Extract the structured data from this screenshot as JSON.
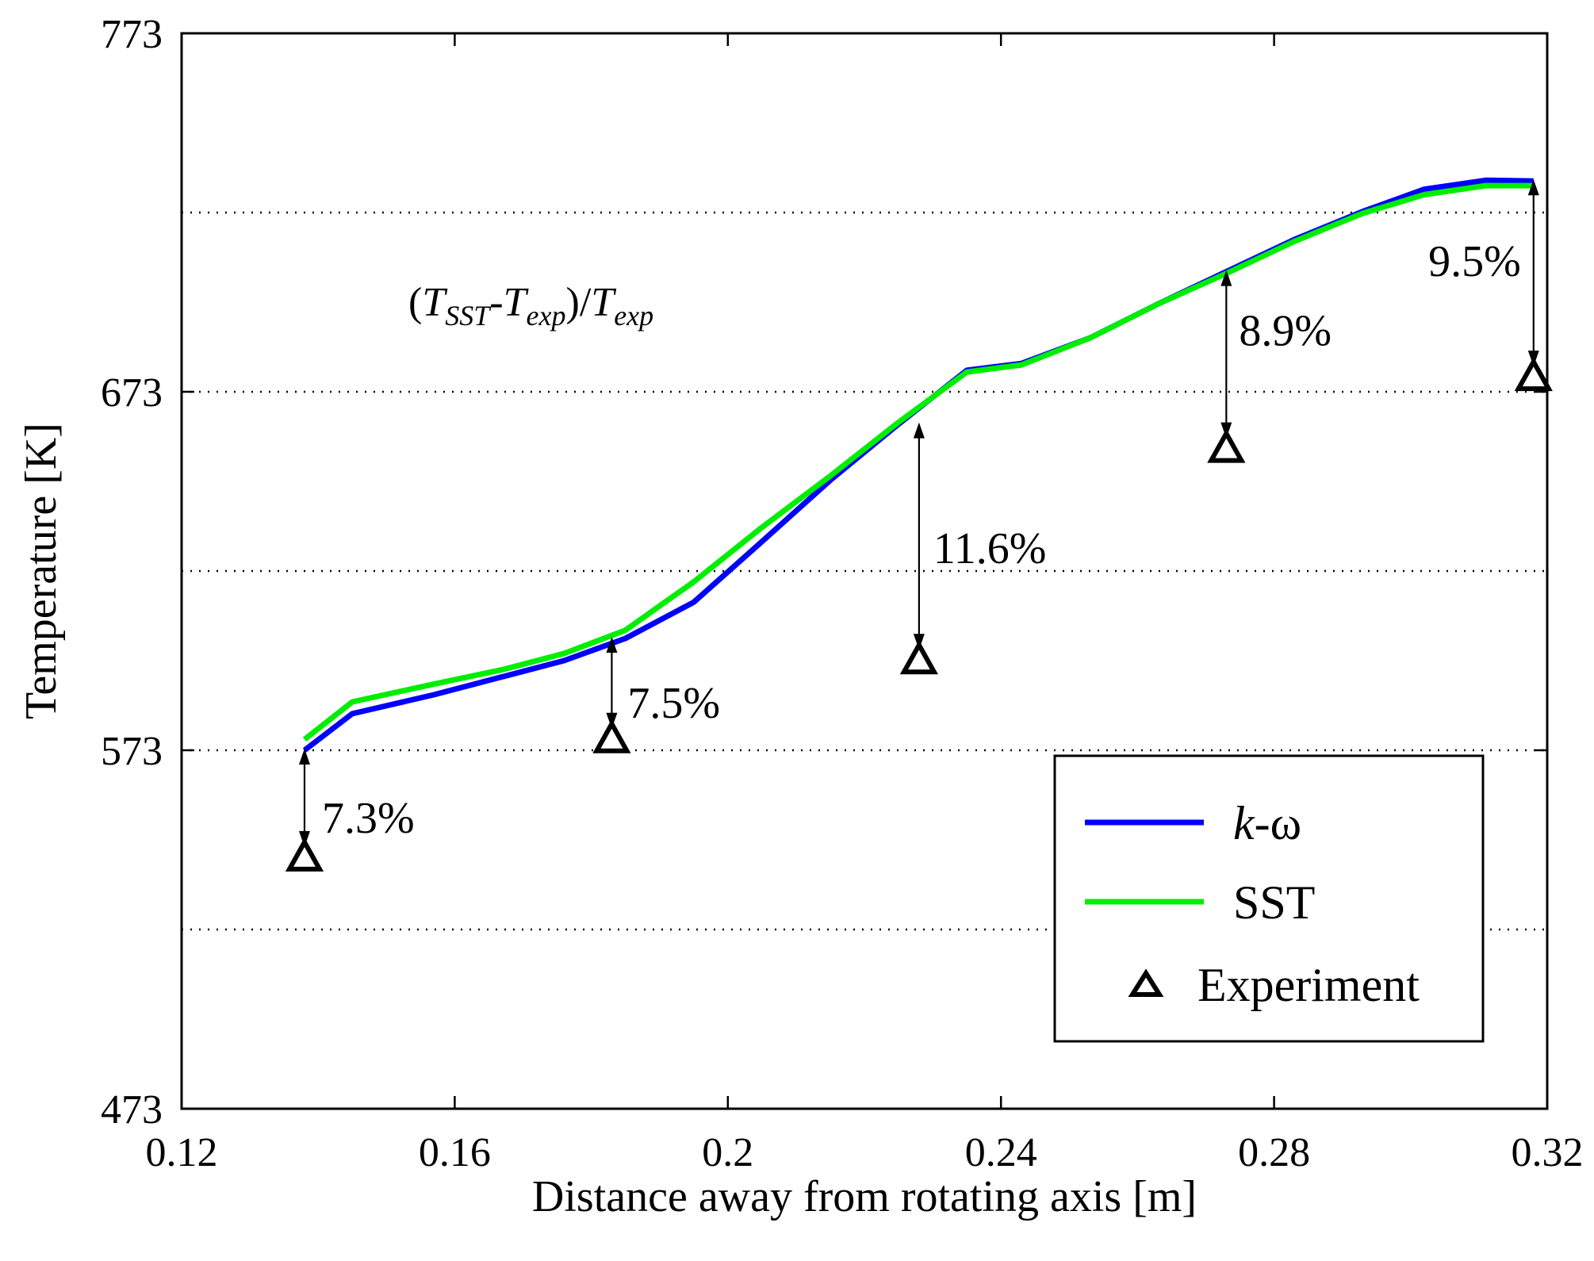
{
  "chart_data": {
    "type": "line",
    "title": "",
    "xlabel": "Distance away from rotating axis [m]",
    "ylabel": "Temperature [K]",
    "xlim": [
      0.12,
      0.32
    ],
    "ylim": [
      473,
      773
    ],
    "x_ticks": [
      0.12,
      0.16,
      0.2,
      0.24,
      0.28,
      0.32
    ],
    "x_tick_labels": [
      "0.12",
      "0.16",
      "0.2",
      "0.24",
      "0.28",
      "0.32"
    ],
    "y_ticks": [
      473,
      573,
      673,
      773
    ],
    "y_tick_labels": [
      "473",
      "573",
      "673",
      "773"
    ],
    "y_gridlines": [
      523,
      573,
      623,
      673,
      723
    ],
    "grid": "horizontal dotted",
    "series": [
      {
        "name": "k-ω",
        "name_prefix": "k",
        "name_suffix": "-ω",
        "style": "line",
        "color": "#0000ff",
        "x": [
          0.138,
          0.145,
          0.157,
          0.167,
          0.176,
          0.185,
          0.195,
          0.205,
          0.215,
          0.225,
          0.235,
          0.243,
          0.253,
          0.263,
          0.273,
          0.283,
          0.293,
          0.302,
          0.311,
          0.318
        ],
        "y": [
          573.0,
          583.2,
          588.5,
          593.5,
          598.0,
          604.2,
          614.3,
          631.2,
          648.3,
          664.0,
          679.0,
          680.9,
          688.0,
          697.5,
          706.5,
          715.5,
          723.3,
          729.5,
          732.0,
          731.8
        ]
      },
      {
        "name": "SST",
        "style": "line",
        "color": "#00ee00",
        "x": [
          0.138,
          0.145,
          0.157,
          0.167,
          0.176,
          0.185,
          0.195,
          0.205,
          0.215,
          0.225,
          0.235,
          0.243,
          0.253,
          0.263,
          0.273,
          0.283,
          0.293,
          0.302,
          0.311,
          0.318
        ],
        "y": [
          576.0,
          586.5,
          591.5,
          595.5,
          600.0,
          606.5,
          620.0,
          635.2,
          649.5,
          664.5,
          678.5,
          680.5,
          688.0,
          697.5,
          706.0,
          715.0,
          722.8,
          728.0,
          730.5,
          730.5
        ]
      },
      {
        "name": "Experiment",
        "style": "markers",
        "marker": "triangle",
        "color": "#000000",
        "x": [
          0.138,
          0.183,
          0.228,
          0.273,
          0.318
        ],
        "y": [
          542.5,
          575.5,
          597.5,
          656.5,
          676.5
        ]
      }
    ],
    "annotations": [
      {
        "text": "7.3%",
        "x": 0.138,
        "y_from": 542.5,
        "y_to": 573.0
      },
      {
        "text": "7.5%",
        "x": 0.183,
        "y_from": 575.5,
        "y_to": 604.2
      },
      {
        "text": "11.6%",
        "x": 0.228,
        "y_from": 597.5,
        "y_to": 664.0
      },
      {
        "text": "8.9%",
        "x": 0.273,
        "y_from": 656.5,
        "y_to": 706.5
      },
      {
        "text": "9.5%",
        "x": 0.318,
        "y_from": 676.5,
        "y_to": 731.8
      }
    ],
    "formula": {
      "open": "(",
      "t1": "T",
      "t1_sub": "SST",
      "dash": "-",
      "t2": "T",
      "t2_sub": "exp",
      "close_div": ")/",
      "t3": "T",
      "t3_sub": "exp"
    },
    "legend": {
      "position": "bottom-right",
      "entries": [
        "k-ω",
        "SST",
        "Experiment"
      ]
    }
  }
}
